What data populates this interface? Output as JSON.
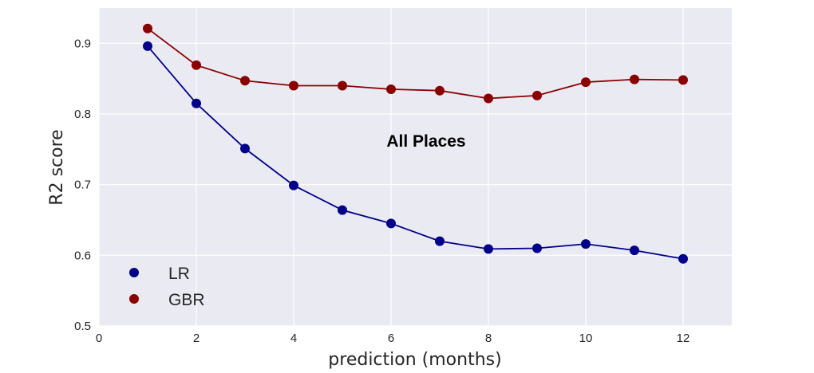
{
  "chart_data": {
    "type": "line",
    "title": "",
    "xlabel": "prediction (months)",
    "ylabel": "R2 score",
    "xlim": [
      0,
      13
    ],
    "ylim": [
      0.5,
      0.95
    ],
    "xticks": [
      "0",
      "2",
      "4",
      "6",
      "8",
      "10",
      "12"
    ],
    "yticks": [
      "0.5",
      "0.6",
      "0.7",
      "0.8",
      "0.9"
    ],
    "x": [
      1,
      2,
      3,
      4,
      5,
      6,
      7,
      8,
      9,
      10,
      11,
      12
    ],
    "series": [
      {
        "name": "LR",
        "color": "#00008b",
        "values": [
          0.896,
          0.815,
          0.751,
          0.699,
          0.664,
          0.645,
          0.62,
          0.609,
          0.61,
          0.616,
          0.607,
          0.595
        ]
      },
      {
        "name": "GBR",
        "color": "#8b0000",
        "values": [
          0.921,
          0.869,
          0.847,
          0.84,
          0.84,
          0.835,
          0.833,
          0.822,
          0.826,
          0.845,
          0.849,
          0.848
        ]
      }
    ],
    "annotation": "All Places",
    "grid": true,
    "legend_position": "bottom-left",
    "background": "#eaeaf2"
  }
}
